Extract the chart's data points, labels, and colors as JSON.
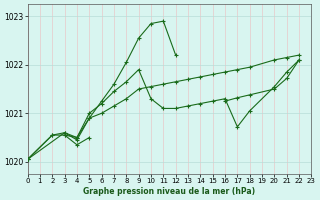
{
  "title": "Graphe pression niveau de la mer (hPa)",
  "bg_color": "#d8f5f0",
  "grid_color_v": "#e8c8c8",
  "grid_color_h": "#b8ddd8",
  "line_color": "#1a6b1a",
  "xlim": [
    0,
    23
  ],
  "ylim": [
    1019.75,
    1023.25
  ],
  "yticks": [
    1020,
    1021,
    1022,
    1023
  ],
  "xticks": [
    0,
    1,
    2,
    3,
    4,
    5,
    6,
    7,
    8,
    9,
    10,
    11,
    12,
    13,
    14,
    15,
    16,
    17,
    18,
    19,
    20,
    21,
    22,
    23
  ],
  "series": [
    {
      "x": [
        0,
        3,
        4,
        5,
        6,
        7,
        8,
        9,
        10,
        11,
        12
      ],
      "y": [
        1020.05,
        1020.6,
        1020.45,
        1020.9,
        1021.25,
        1021.6,
        1022.05,
        1022.55,
        1022.85,
        1022.9,
        1022.2
      ]
    },
    {
      "x": [
        3,
        4,
        5
      ],
      "y": [
        1020.55,
        1020.35,
        1020.5
      ]
    },
    {
      "x": [
        0,
        2,
        3,
        4,
        5,
        6,
        7,
        8,
        9,
        10,
        11,
        12,
        13,
        14,
        15,
        16,
        17,
        18,
        20,
        21,
        22
      ],
      "y": [
        1020.05,
        1020.55,
        1020.55,
        1020.5,
        1021.0,
        1021.2,
        1021.45,
        1021.65,
        1021.9,
        1021.3,
        1021.1,
        1021.1,
        1021.15,
        1021.2,
        1021.25,
        1021.3,
        1020.72,
        1021.05,
        1021.55,
        1021.85,
        1022.1
      ]
    },
    {
      "x": [
        0,
        2,
        3,
        4,
        5,
        6,
        7,
        8,
        9,
        10,
        11,
        12,
        13,
        14,
        15,
        16,
        17,
        18,
        20,
        21,
        22
      ],
      "y": [
        1020.05,
        1020.55,
        1020.6,
        1020.5,
        1020.9,
        1021.0,
        1021.15,
        1021.3,
        1021.5,
        1021.55,
        1021.6,
        1021.65,
        1021.7,
        1021.75,
        1021.8,
        1021.85,
        1021.9,
        1021.95,
        1022.1,
        1022.15,
        1022.2
      ]
    },
    {
      "x": [
        16,
        17,
        18,
        20,
        21,
        22
      ],
      "y": [
        1021.25,
        1021.32,
        1021.38,
        1021.5,
        1021.72,
        1022.1
      ]
    }
  ]
}
